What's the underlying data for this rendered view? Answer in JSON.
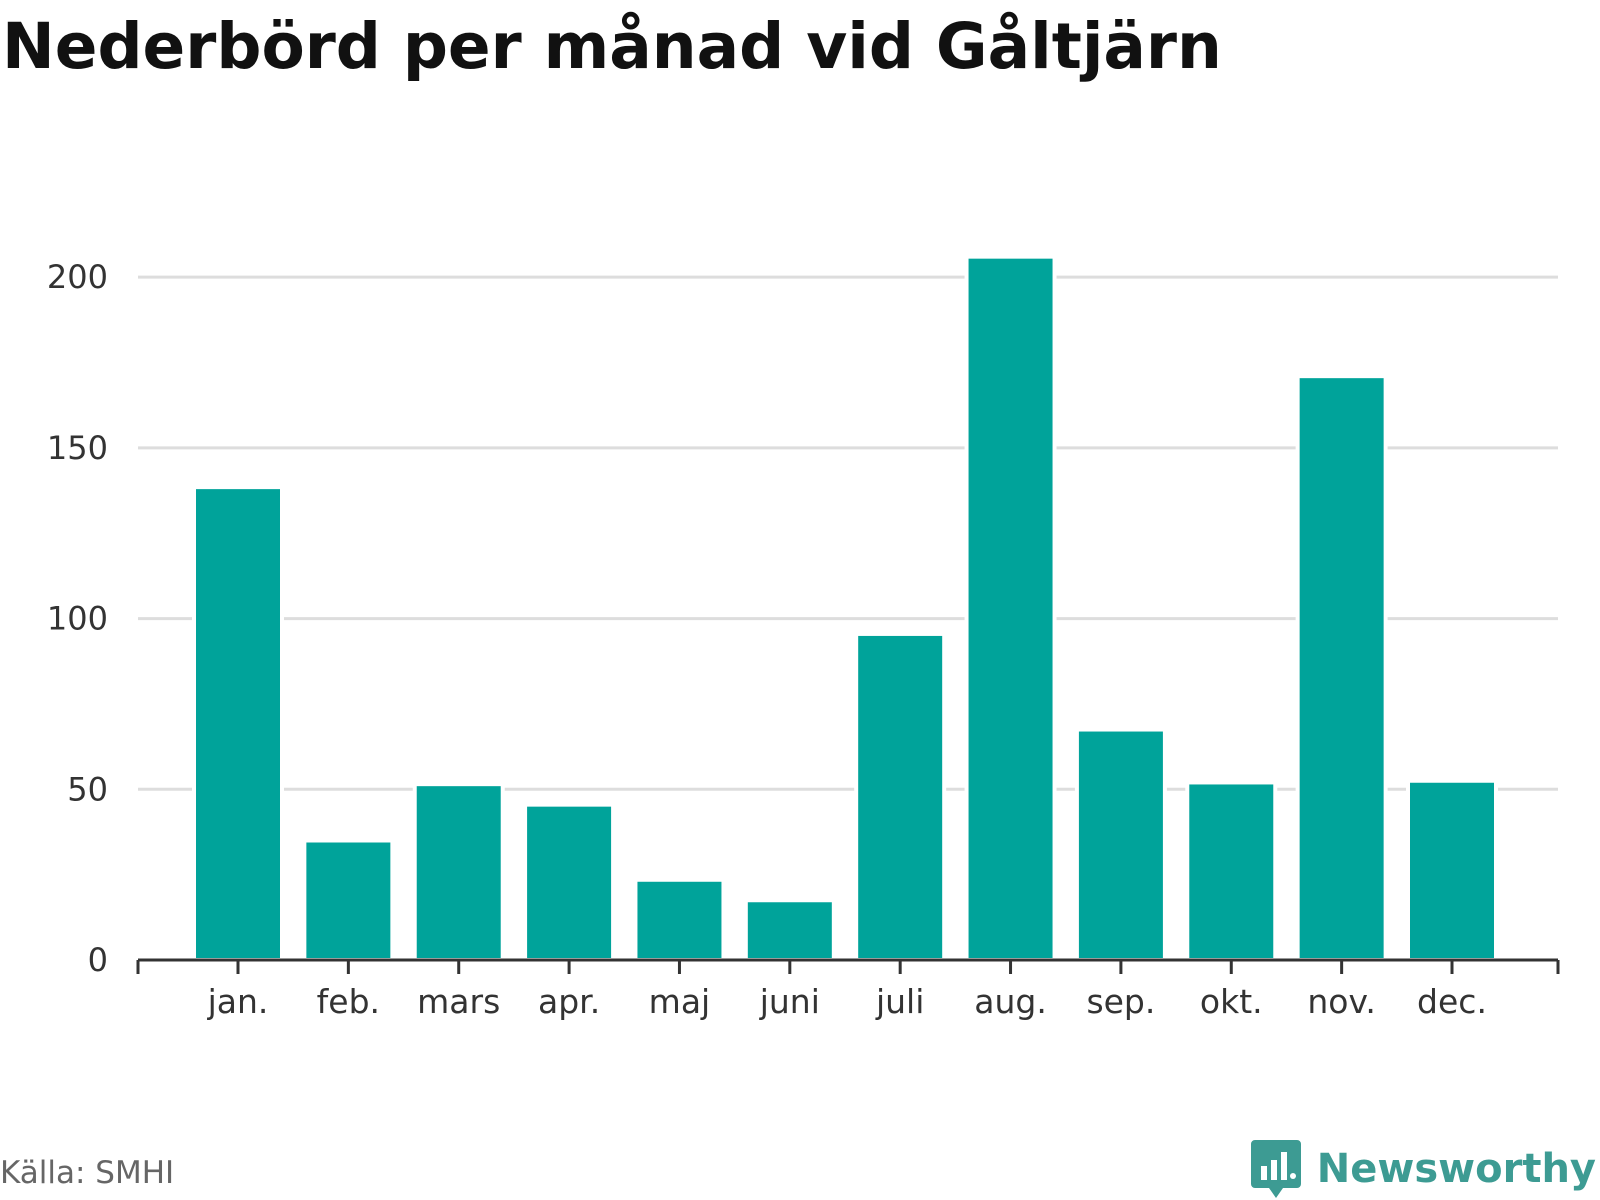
{
  "title": "Nederbörd per månad vid Gåltjärn",
  "source": "Källa: SMHI",
  "brand": "Newsworthy",
  "colors": {
    "bar": "#00a39a",
    "grid": "#dddddd",
    "axis": "#333333",
    "brand": "#3d9b93"
  },
  "chart_data": {
    "type": "bar",
    "categories": [
      "jan.",
      "feb.",
      "mars",
      "apr.",
      "maj",
      "juni",
      "juli",
      "aug.",
      "sep.",
      "okt.",
      "nov.",
      "dec."
    ],
    "values": [
      138.5,
      35,
      51.5,
      45.5,
      23.5,
      17.5,
      95.5,
      206,
      67.5,
      52,
      171,
      52.5
    ],
    "yticks": [
      0,
      50,
      100,
      150,
      200
    ],
    "ylim": [
      0,
      210
    ],
    "grid": true,
    "legend": "none"
  }
}
